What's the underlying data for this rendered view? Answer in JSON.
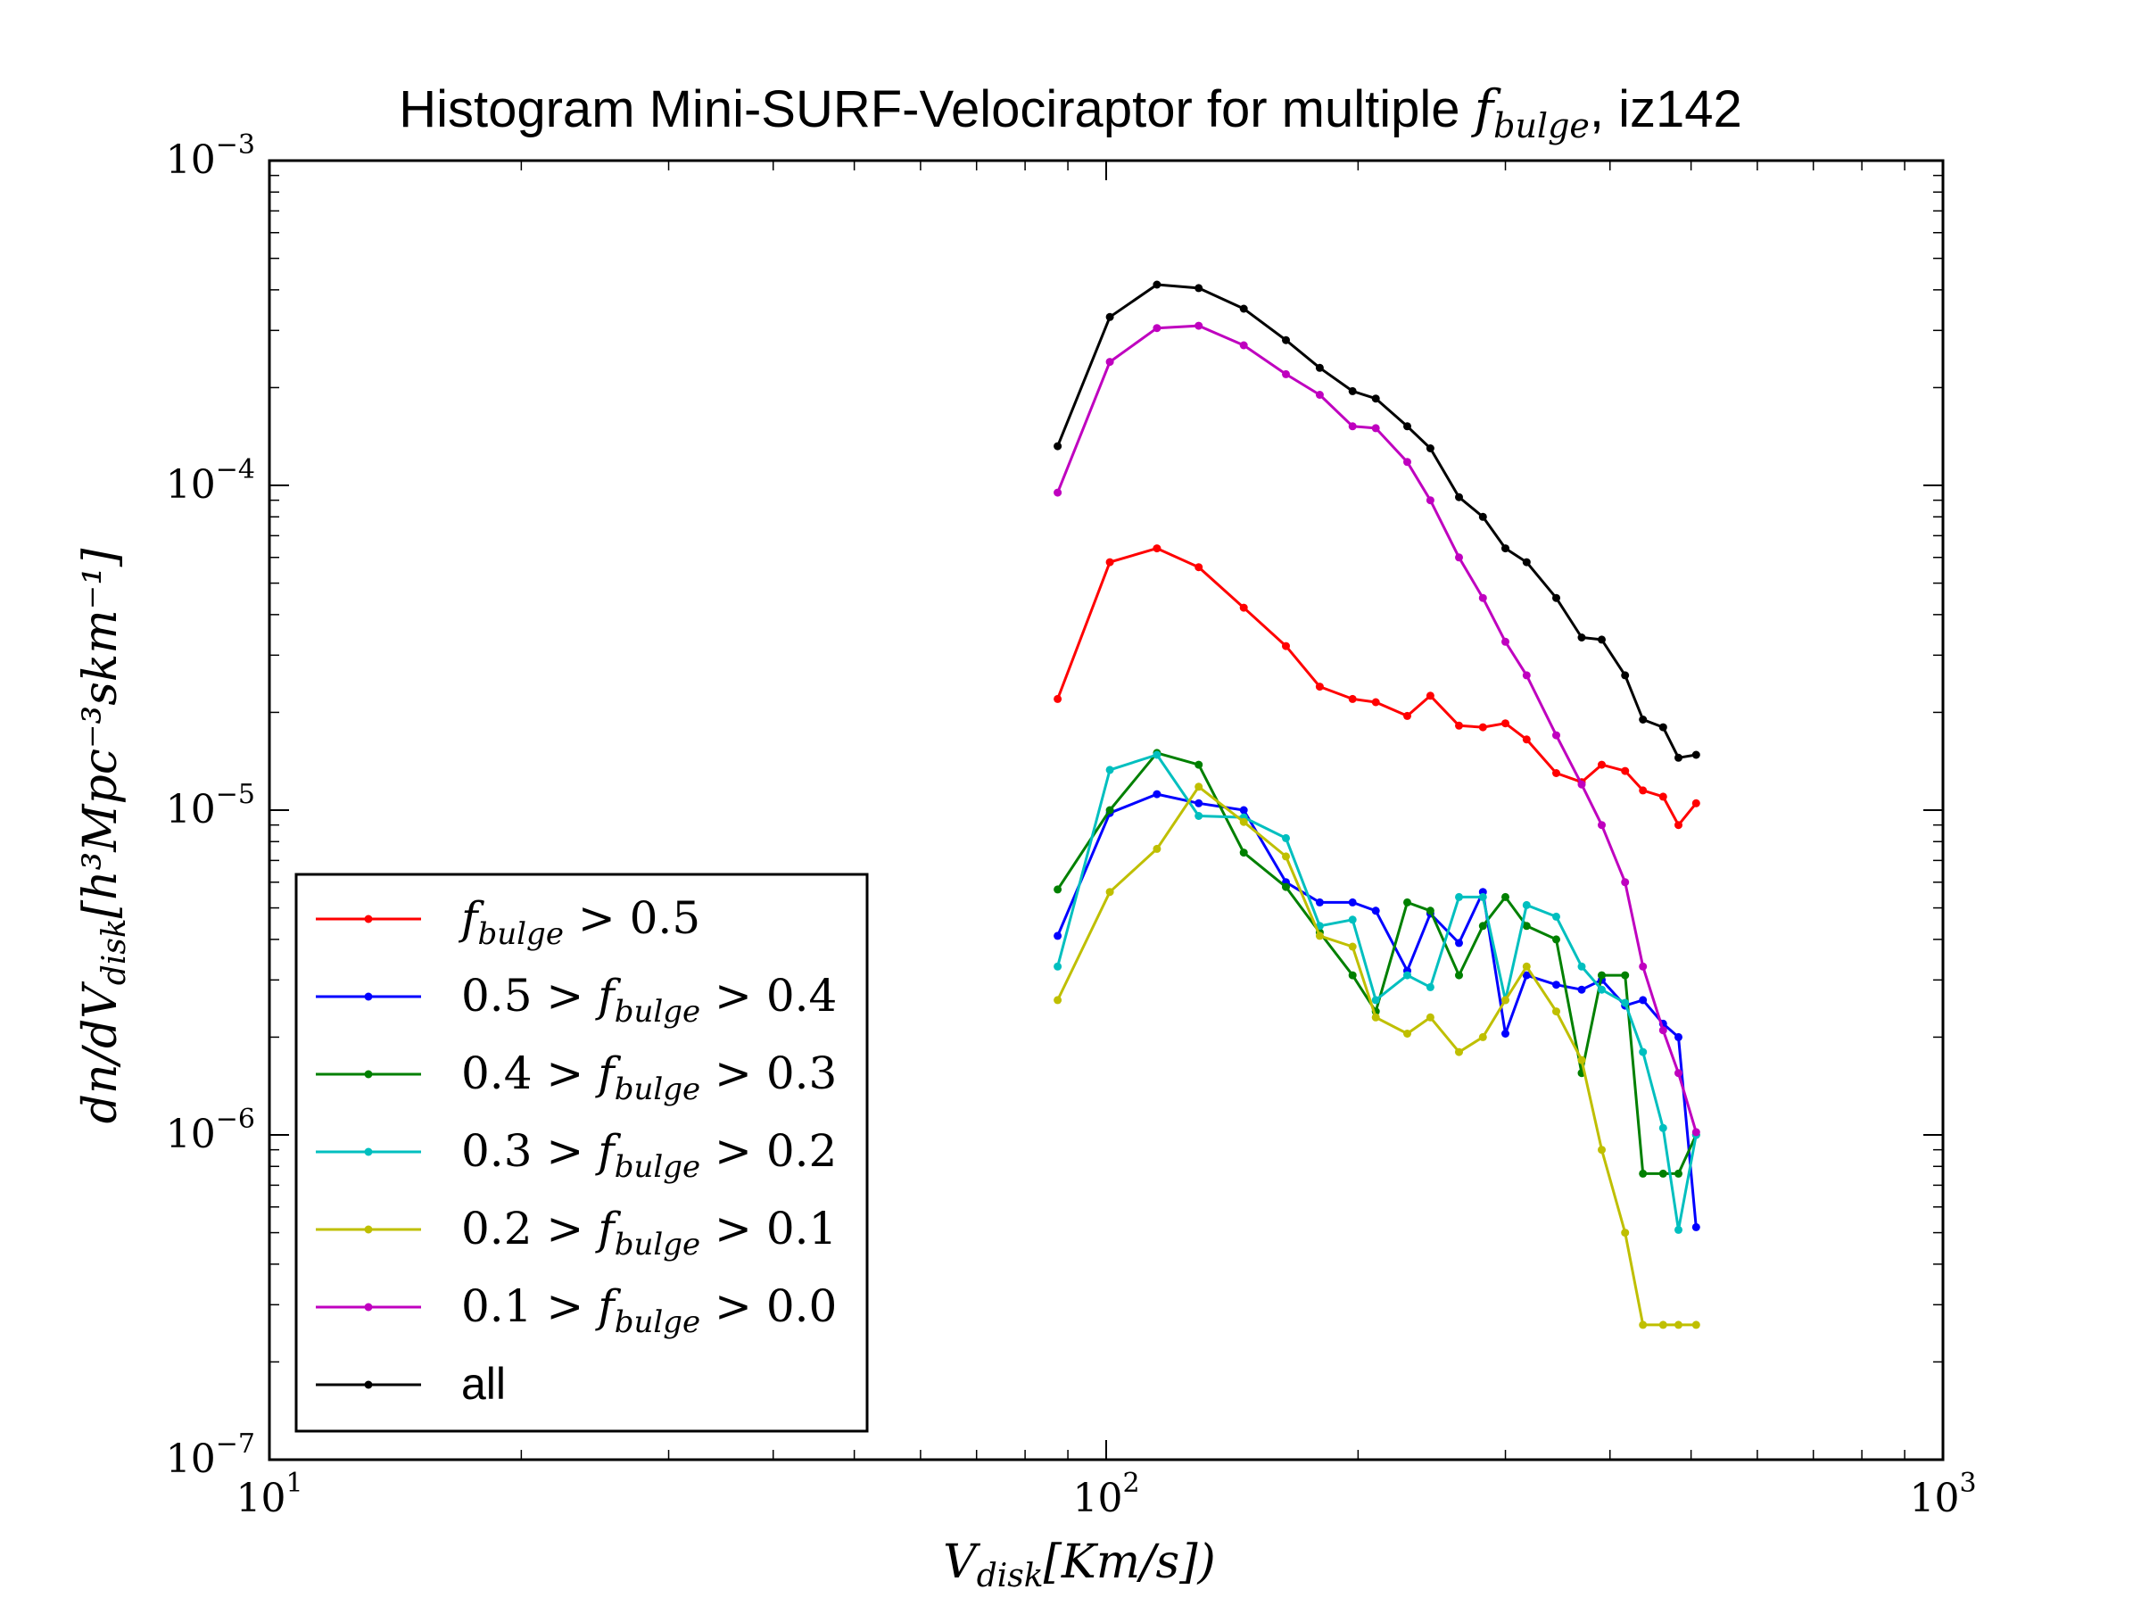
{
  "chart_data": {
    "type": "line",
    "title_prefix": "Histogram Mini-SURF-Velociraptor for multiple ",
    "title_symbol": "f",
    "title_symbol_sub": "bulge",
    "title_suffix": ", iz142",
    "xlabel_symbol": "V",
    "xlabel_sub": "disk",
    "xlabel_units": "[Km/s])",
    "ylabel": "dn/dV",
    "ylabel_sub": "disk",
    "ylabel_units": "[h³Mpc⁻³skm⁻¹]",
    "xscale": "log",
    "yscale": "log",
    "xlim": [
      10,
      1000
    ],
    "ylim": [
      1e-07,
      0.001
    ],
    "legend_position": "lower-left",
    "x_ticks": [
      {
        "value": 10,
        "base": "10",
        "exp": "1"
      },
      {
        "value": 100,
        "base": "10",
        "exp": "2"
      },
      {
        "value": 1000,
        "base": "10",
        "exp": "3"
      }
    ],
    "y_ticks": [
      {
        "value": 1e-07,
        "base": "10",
        "exp": "−7"
      },
      {
        "value": 1e-06,
        "base": "10",
        "exp": "−6"
      },
      {
        "value": 1e-05,
        "base": "10",
        "exp": "−5"
      },
      {
        "value": 0.0001,
        "base": "10",
        "exp": "−4"
      },
      {
        "value": 0.001,
        "base": "10",
        "exp": "−3"
      }
    ],
    "x": [
      87.5,
      101,
      115,
      129,
      146,
      164,
      180,
      197,
      210,
      229,
      244,
      264,
      282,
      300,
      318,
      345,
      370,
      391,
      417,
      438,
      463,
      483,
      507
    ],
    "series": [
      {
        "name": "f_bulge > 0.5",
        "legend": [
          {
            "t": "f",
            "i": true
          },
          {
            "t": "bulge",
            "sub": true,
            "i": true
          },
          {
            "t": " > 0.5"
          }
        ],
        "color": "#ff0000",
        "values": [
          2.2e-05,
          5.8e-05,
          6.4e-05,
          5.6e-05,
          4.2e-05,
          3.2e-05,
          2.4e-05,
          2.2e-05,
          2.15e-05,
          1.95e-05,
          2.25e-05,
          1.82e-05,
          1.8e-05,
          1.85e-05,
          1.65e-05,
          1.3e-05,
          1.22e-05,
          1.38e-05,
          1.32e-05,
          1.15e-05,
          1.1e-05,
          9e-06,
          1.05e-05
        ]
      },
      {
        "name": "0.5 > f_bulge > 0.4",
        "legend": [
          {
            "t": "0.5 > "
          },
          {
            "t": "f",
            "i": true
          },
          {
            "t": "bulge",
            "sub": true,
            "i": true
          },
          {
            "t": " > 0.4"
          }
        ],
        "color": "#0000ff",
        "values": [
          4.1e-06,
          9.8e-06,
          1.12e-05,
          1.05e-05,
          1e-05,
          6e-06,
          5.2e-06,
          5.2e-06,
          4.9e-06,
          3.2e-06,
          4.8e-06,
          3.9e-06,
          5.6e-06,
          2.05e-06,
          3.1e-06,
          2.9e-06,
          2.8e-06,
          3e-06,
          2.5e-06,
          2.6e-06,
          2.2e-06,
          2e-06,
          5.2e-07
        ]
      },
      {
        "name": "0.4 > f_bulge > 0.3",
        "legend": [
          {
            "t": "0.4 > "
          },
          {
            "t": "f",
            "i": true
          },
          {
            "t": "bulge",
            "sub": true,
            "i": true
          },
          {
            "t": " > 0.3"
          }
        ],
        "color": "#008000",
        "values": [
          5.7e-06,
          1e-05,
          1.5e-05,
          1.38e-05,
          7.4e-06,
          5.8e-06,
          4.2e-06,
          3.1e-06,
          2.4e-06,
          5.2e-06,
          4.9e-06,
          3.1e-06,
          4.4e-06,
          5.4e-06,
          4.4e-06,
          4e-06,
          1.55e-06,
          3.1e-06,
          3.1e-06,
          7.6e-07,
          7.6e-07,
          7.6e-07,
          1e-06
        ]
      },
      {
        "name": "0.3 > f_bulge > 0.2",
        "legend": [
          {
            "t": "0.3 > "
          },
          {
            "t": "f",
            "i": true
          },
          {
            "t": "bulge",
            "sub": true,
            "i": true
          },
          {
            "t": " > 0.2"
          }
        ],
        "color": "#00bfbf",
        "values": [
          3.3e-06,
          1.33e-05,
          1.48e-05,
          9.6e-06,
          9.5e-06,
          8.2e-06,
          4.4e-06,
          4.6e-06,
          2.6e-06,
          3.1e-06,
          2.85e-06,
          5.4e-06,
          5.4e-06,
          2.6e-06,
          5.1e-06,
          4.7e-06,
          3.3e-06,
          2.8e-06,
          2.55e-06,
          1.8e-06,
          1.05e-06,
          5.1e-07,
          1e-06
        ]
      },
      {
        "name": "0.2 > f_bulge > 0.1",
        "legend": [
          {
            "t": "0.2 > "
          },
          {
            "t": "f",
            "i": true
          },
          {
            "t": "bulge",
            "sub": true,
            "i": true
          },
          {
            "t": " > 0.1"
          }
        ],
        "color": "#bfbf00",
        "values": [
          2.6e-06,
          5.6e-06,
          7.6e-06,
          1.18e-05,
          9.2e-06,
          7.2e-06,
          4.1e-06,
          3.8e-06,
          2.3e-06,
          2.05e-06,
          2.3e-06,
          1.8e-06,
          2e-06,
          2.6e-06,
          3.3e-06,
          2.4e-06,
          1.7e-06,
          9e-07,
          5e-07,
          2.6e-07,
          2.6e-07,
          2.6e-07,
          2.6e-07
        ]
      },
      {
        "name": "0.1 > f_bulge > 0.0",
        "legend": [
          {
            "t": "0.1 > "
          },
          {
            "t": "f",
            "i": true
          },
          {
            "t": "bulge",
            "sub": true,
            "i": true
          },
          {
            "t": " > 0.0"
          }
        ],
        "color": "#bf00bf",
        "values": [
          9.5e-05,
          0.00024,
          0.000305,
          0.00031,
          0.00027,
          0.00022,
          0.00019,
          0.000152,
          0.00015,
          0.000118,
          9e-05,
          6e-05,
          4.5e-05,
          3.3e-05,
          2.6e-05,
          1.7e-05,
          1.2e-05,
          9e-06,
          6e-06,
          3.3e-06,
          2.1e-06,
          1.55e-06,
          1.02e-06
        ]
      },
      {
        "name": "all",
        "legend": [
          {
            "t": "all",
            "sans": true
          }
        ],
        "color": "#000000",
        "values": [
          0.000132,
          0.00033,
          0.000415,
          0.000405,
          0.00035,
          0.00028,
          0.00023,
          0.000195,
          0.000185,
          0.000152,
          0.00013,
          9.2e-05,
          8e-05,
          6.4e-05,
          5.8e-05,
          4.5e-05,
          3.4e-05,
          3.35e-05,
          2.6e-05,
          1.9e-05,
          1.8e-05,
          1.45e-05,
          1.48e-05
        ]
      }
    ]
  }
}
